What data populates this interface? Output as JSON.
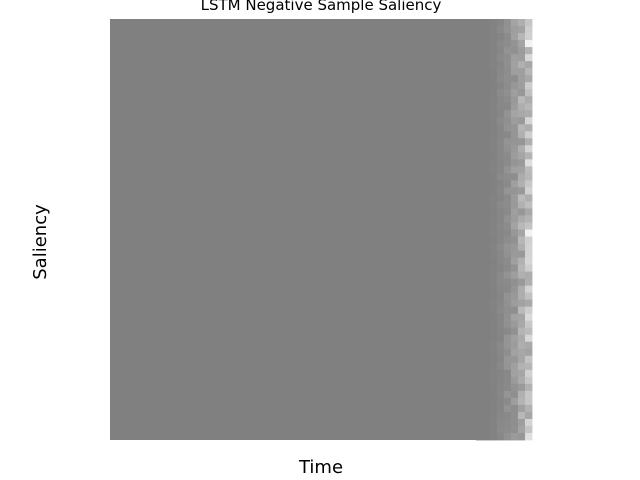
{
  "chart_data": {
    "type": "heatmap",
    "title": "LSTM Negative Sample Saliency",
    "xlabel": "Time",
    "ylabel": "Saliency",
    "grid": false,
    "legend": "none",
    "xticks": [],
    "yticks": [],
    "colormap": "gray",
    "base_color": "#808080",
    "n_rows": 60,
    "n_cols": 60,
    "background_value": 0.5,
    "description_of_values": "uniform mid-gray (0.5) across nearly all cells; last ~7 time columns fade toward lighter values (up to ~0.88)",
    "edge_profile": [
      0.5,
      0.5,
      0.51,
      0.53,
      0.56,
      0.6,
      0.66,
      0.74
    ]
  }
}
